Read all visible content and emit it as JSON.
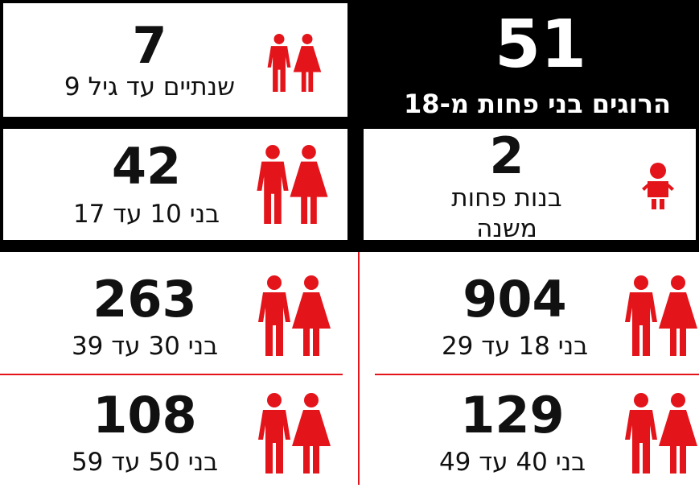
{
  "headline": {
    "number": 51,
    "label": "הרוגים בני פחות מ-18"
  },
  "cells": [
    {
      "number": 7,
      "label_lines": [
        "שנתיים עד גיל 9"
      ]
    },
    {
      "number": 42,
      "label_lines": [
        "בני 10 עד 17"
      ]
    },
    {
      "number": 2,
      "label_lines": [
        "בנות פחות",
        "משנה"
      ]
    },
    {
      "number": 904,
      "label_lines": [
        "בני 18 עד 29"
      ]
    },
    {
      "number": 263,
      "label_lines": [
        "בני 30 עד 39"
      ]
    },
    {
      "number": 129,
      "label_lines": [
        "בני 40 עד 49"
      ]
    },
    {
      "number": 108,
      "label_lines": [
        "בני 50 עד 59"
      ]
    }
  ]
}
